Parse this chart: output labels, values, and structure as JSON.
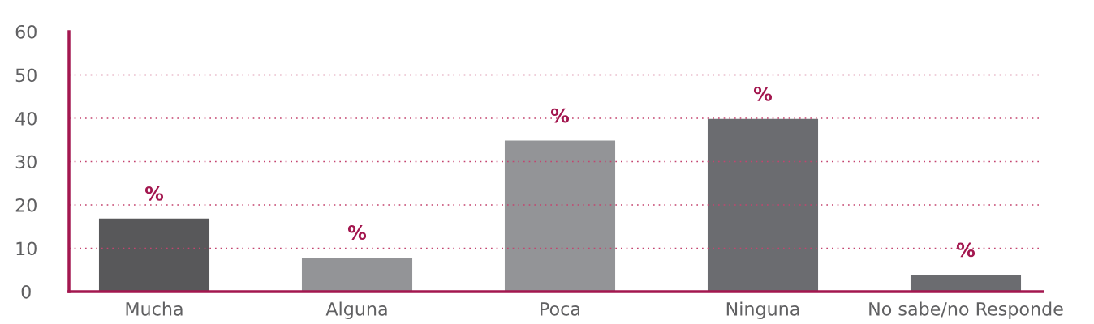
{
  "chart_data": {
    "type": "bar",
    "categories": [
      "Mucha",
      "Alguna",
      "Poca",
      "Ninguna",
      "No sabe/no Responde"
    ],
    "values": [
      17,
      8,
      35,
      40,
      4
    ],
    "colors": [
      "#58585a",
      "#939497",
      "#939497",
      "#6b6c70",
      "#6b6c70"
    ],
    "value_labels": [
      "%",
      "%",
      "%",
      "%",
      "%"
    ],
    "ylim": [
      0,
      60
    ],
    "yticks": [
      0,
      10,
      20,
      30,
      40,
      50,
      60
    ],
    "grid": "y"
  }
}
